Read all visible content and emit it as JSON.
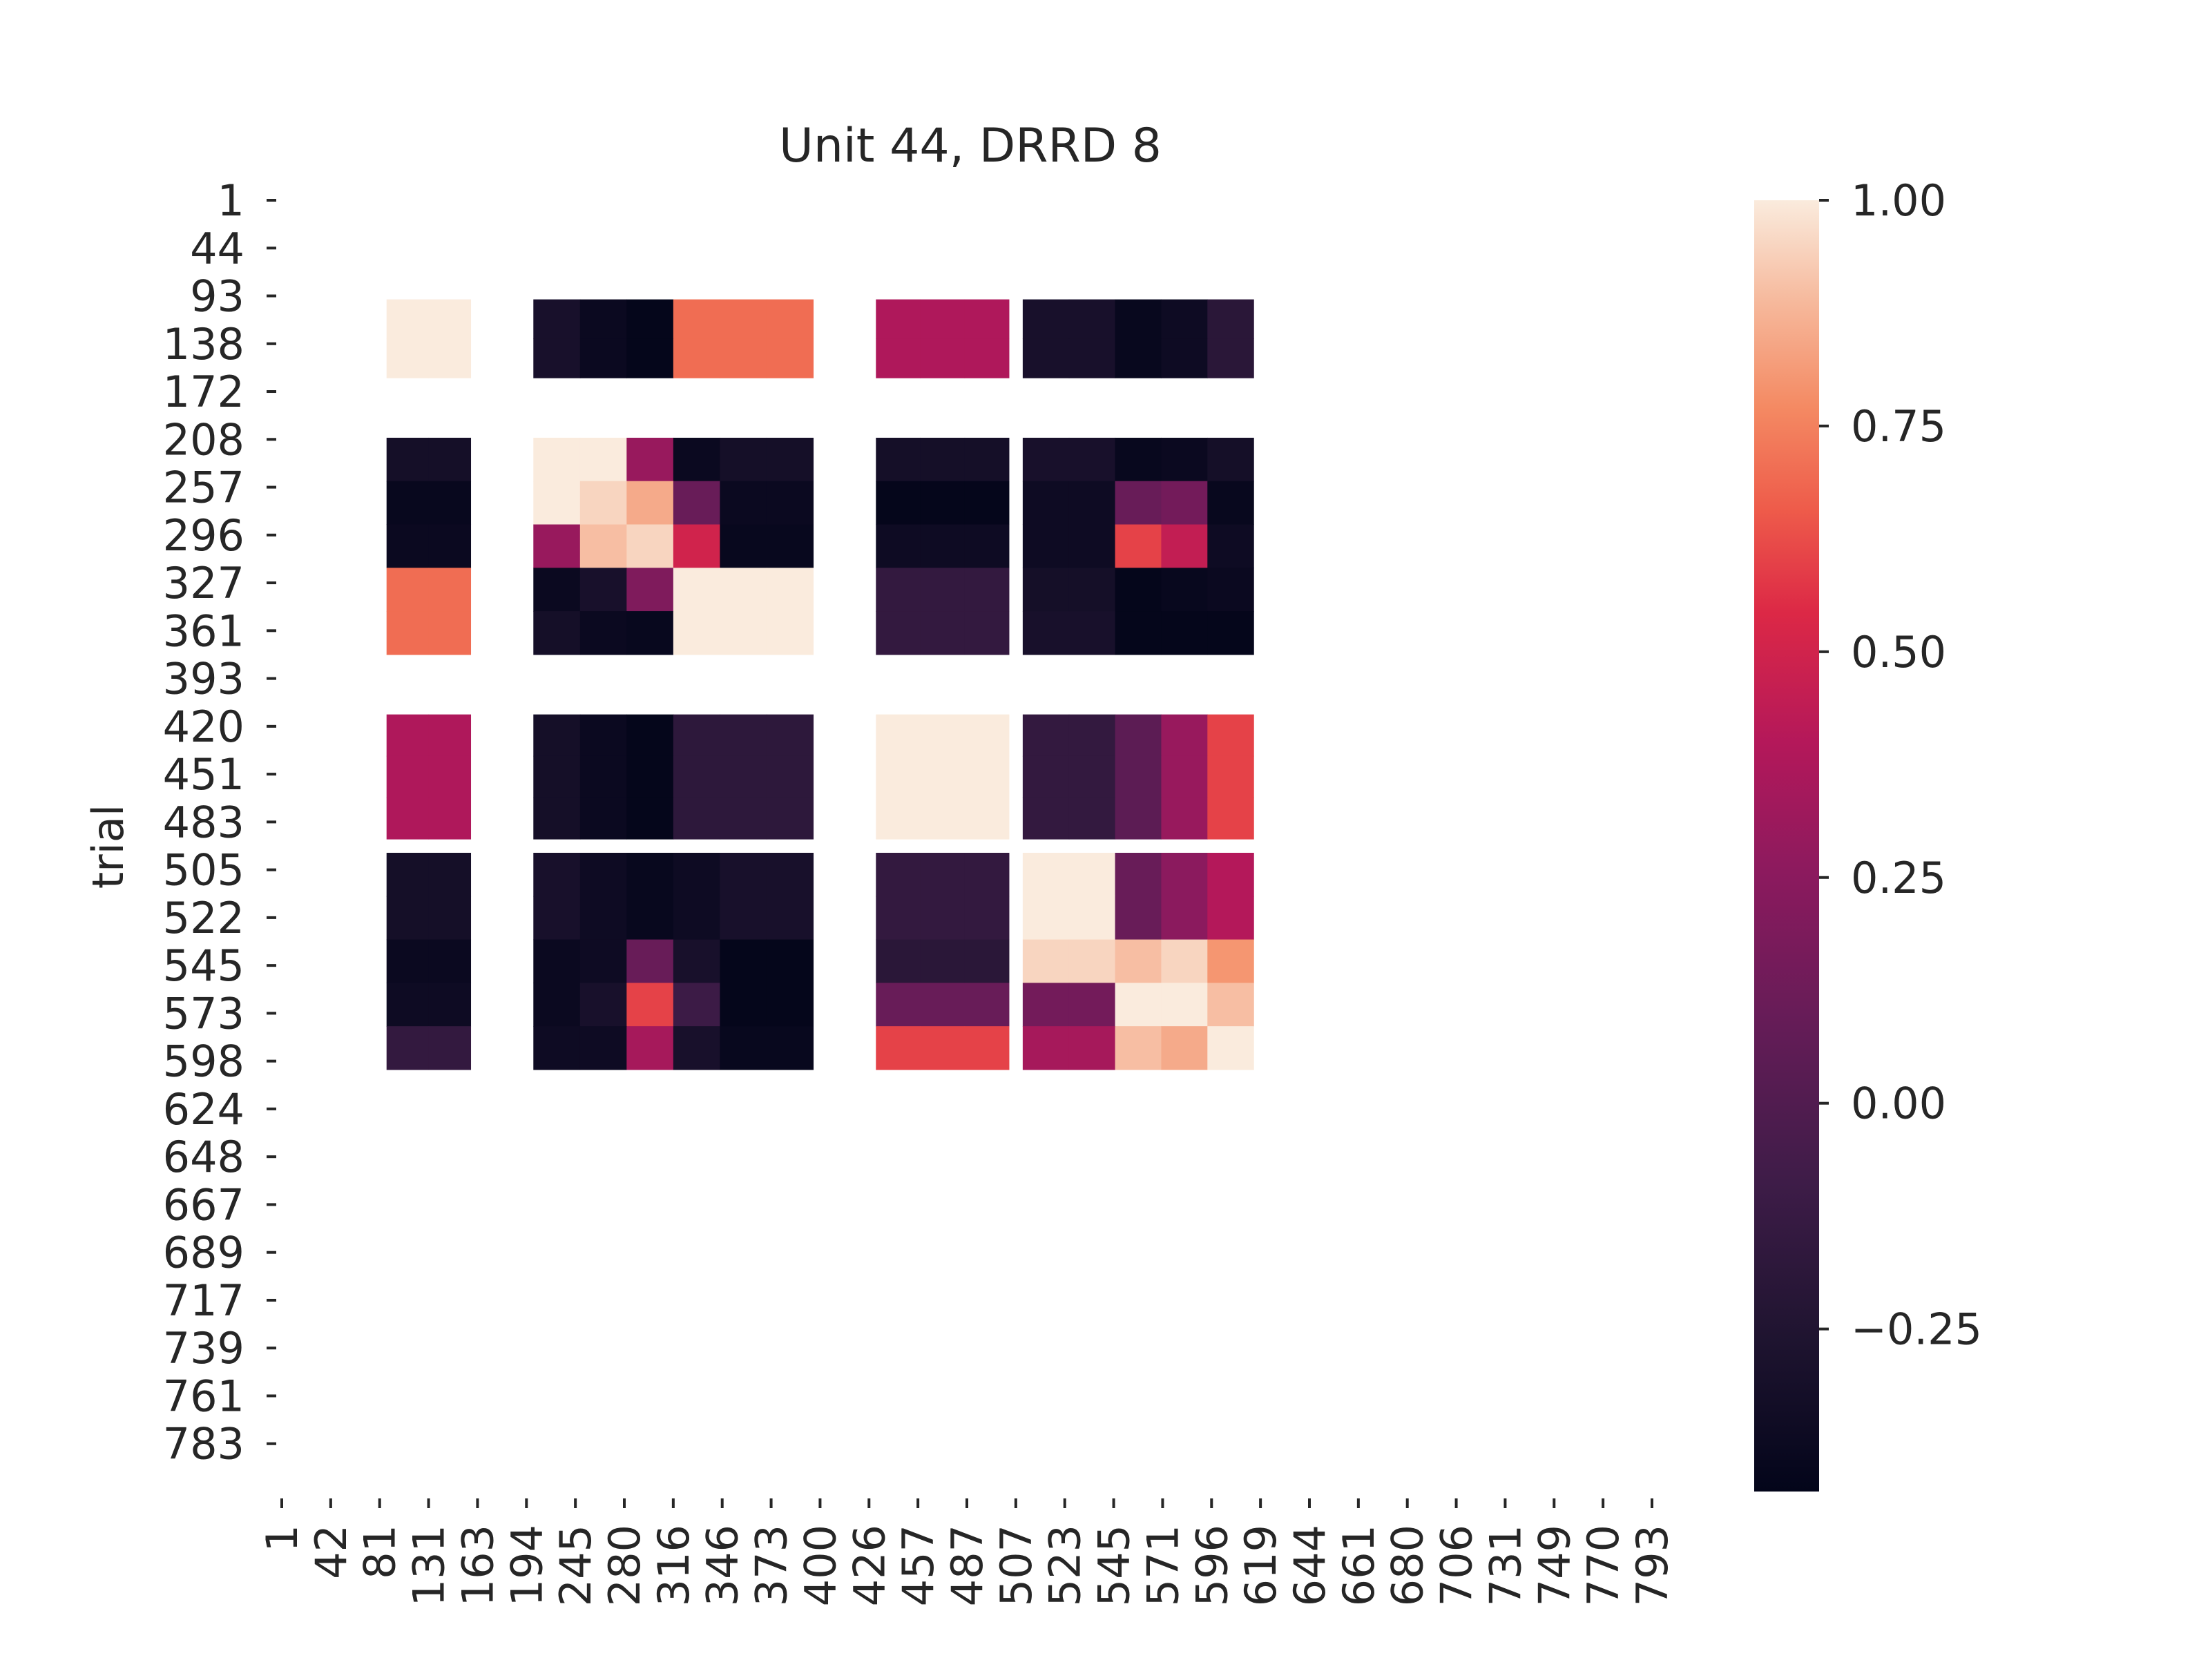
{
  "chart_data": {
    "type": "heatmap",
    "title": "Unit 44, DRRD 8",
    "xlabel": "",
    "ylabel": "trial",
    "colorbar": {
      "ticks": [
        1.0,
        0.75,
        0.5,
        0.25,
        0.0,
        -0.25
      ],
      "tick_labels": [
        "1.00",
        "0.75",
        "0.50",
        "0.25",
        "0.00",
        "−0.25"
      ],
      "vmin": -0.43,
      "vmax": 1.0,
      "colormap": "rocket"
    },
    "x_tick_labels": [
      "1",
      "42",
      "81",
      "131",
      "163",
      "194",
      "245",
      "280",
      "316",
      "346",
      "373",
      "400",
      "426",
      "457",
      "487",
      "507",
      "523",
      "545",
      "571",
      "596",
      "619",
      "644",
      "661",
      "680",
      "706",
      "731",
      "749",
      "770",
      "793"
    ],
    "y_tick_labels": [
      "1",
      "44",
      "93",
      "138",
      "172",
      "208",
      "257",
      "296",
      "327",
      "361",
      "393",
      "420",
      "451",
      "483",
      "505",
      "522",
      "545",
      "573",
      "598",
      "624",
      "648",
      "667",
      "689",
      "717",
      "739",
      "761",
      "783"
    ],
    "grid_rows": 28,
    "grid_cols": 28,
    "blocks": [
      {
        "name": "block-a-a",
        "row_range": [
          2,
          4
        ],
        "col_range": [
          2,
          4
        ],
        "values": [
          [
            1.0,
            1.0
          ],
          [
            1.0,
            1.0
          ]
        ]
      },
      {
        "name": "block-a-b",
        "row_range": [
          2,
          4
        ],
        "col_range": [
          5,
          11
        ],
        "values": [
          [
            -0.3,
            -0.38,
            -0.42,
            0.7,
            0.7,
            0.7
          ],
          [
            -0.3,
            -0.38,
            -0.42,
            0.7,
            0.7,
            0.7
          ]
        ]
      },
      {
        "name": "block-a-c",
        "row_range": [
          2,
          4
        ],
        "col_range": [
          12,
          15
        ],
        "values": [
          [
            0.38,
            0.38,
            0.38
          ],
          [
            0.38,
            0.38,
            0.38
          ]
        ]
      },
      {
        "name": "block-a-d",
        "row_range": [
          2,
          4
        ],
        "col_range": [
          15,
          20
        ],
        "values": [
          [
            -0.3,
            -0.3,
            -0.4,
            -0.36,
            -0.2
          ],
          [
            -0.3,
            -0.3,
            -0.4,
            -0.36,
            -0.2
          ]
        ]
      },
      {
        "name": "block-b-a",
        "row_range": [
          5,
          10
        ],
        "col_range": [
          2,
          4
        ],
        "values": [
          [
            -0.32,
            -0.32
          ],
          [
            -0.4,
            -0.4
          ],
          [
            -0.38,
            -0.38
          ],
          [
            0.7,
            0.7
          ],
          [
            0.7,
            0.7
          ]
        ]
      },
      {
        "name": "block-b-b",
        "row_range": [
          5,
          10
        ],
        "col_range": [
          5,
          11
        ],
        "values": [
          [
            1.0,
            1.0,
            0.3,
            -0.38,
            -0.32,
            -0.32
          ],
          [
            1.0,
            0.95,
            0.85,
            0.1,
            -0.38,
            -0.38
          ],
          [
            0.3,
            0.9,
            0.95,
            0.5,
            -0.4,
            -0.4
          ],
          [
            -0.38,
            -0.3,
            0.2,
            1.0,
            1.0,
            1.0
          ],
          [
            -0.32,
            -0.38,
            -0.4,
            1.0,
            1.0,
            1.0
          ]
        ]
      },
      {
        "name": "block-b-c",
        "row_range": [
          5,
          10
        ],
        "col_range": [
          12,
          15
        ],
        "values": [
          [
            -0.32,
            -0.32,
            -0.32
          ],
          [
            -0.42,
            -0.42,
            -0.42
          ],
          [
            -0.36,
            -0.36,
            -0.36
          ],
          [
            -0.15,
            -0.15,
            -0.15
          ],
          [
            -0.15,
            -0.15,
            -0.15
          ]
        ]
      },
      {
        "name": "block-b-d",
        "row_range": [
          5,
          10
        ],
        "col_range": [
          15,
          20
        ],
        "values": [
          [
            -0.3,
            -0.3,
            -0.4,
            -0.38,
            -0.32
          ],
          [
            -0.36,
            -0.36,
            0.1,
            0.15,
            -0.4
          ],
          [
            -0.36,
            -0.36,
            0.6,
            0.45,
            -0.36
          ],
          [
            -0.32,
            -0.32,
            -0.42,
            -0.4,
            -0.38
          ],
          [
            -0.3,
            -0.3,
            -0.42,
            -0.42,
            -0.42
          ]
        ]
      },
      {
        "name": "block-c-a",
        "row_range": [
          11,
          14
        ],
        "col_range": [
          2,
          4
        ],
        "values": [
          [
            0.38,
            0.38
          ],
          [
            0.38,
            0.38
          ],
          [
            0.38,
            0.38
          ]
        ]
      },
      {
        "name": "block-c-b",
        "row_range": [
          11,
          14
        ],
        "col_range": [
          5,
          11
        ],
        "values": [
          [
            -0.32,
            -0.38,
            -0.42,
            -0.18,
            -0.18,
            -0.18
          ],
          [
            -0.32,
            -0.38,
            -0.42,
            -0.18,
            -0.18,
            -0.18
          ],
          [
            -0.32,
            -0.38,
            -0.42,
            -0.18,
            -0.18,
            -0.18
          ]
        ]
      },
      {
        "name": "block-c-c",
        "row_range": [
          11,
          14
        ],
        "col_range": [
          12,
          15
        ],
        "values": [
          [
            1.0,
            1.0,
            1.0
          ],
          [
            1.0,
            1.0,
            1.0
          ],
          [
            1.0,
            1.0,
            1.0
          ]
        ]
      },
      {
        "name": "block-c-d",
        "row_range": [
          11,
          14
        ],
        "col_range": [
          15,
          20
        ],
        "values": [
          [
            -0.15,
            -0.15,
            0.05,
            0.3,
            0.6
          ],
          [
            -0.15,
            -0.15,
            0.05,
            0.3,
            0.6
          ],
          [
            -0.15,
            -0.15,
            0.05,
            0.3,
            0.6
          ]
        ]
      },
      {
        "name": "block-d-a",
        "row_range": [
          14,
          19
        ],
        "col_range": [
          2,
          4
        ],
        "values": [
          [
            -0.32,
            -0.32
          ],
          [
            -0.32,
            -0.32
          ],
          [
            -0.38,
            -0.38
          ],
          [
            -0.36,
            -0.36
          ],
          [
            -0.15,
            -0.15
          ]
        ]
      },
      {
        "name": "block-d-b",
        "row_range": [
          14,
          19
        ],
        "col_range": [
          5,
          11
        ],
        "values": [
          [
            -0.3,
            -0.36,
            -0.4,
            -0.36,
            -0.3,
            -0.3
          ],
          [
            -0.3,
            -0.36,
            -0.4,
            -0.36,
            -0.3,
            -0.3
          ],
          [
            -0.38,
            -0.36,
            0.1,
            -0.3,
            -0.42,
            -0.42
          ],
          [
            -0.38,
            -0.3,
            0.6,
            -0.1,
            -0.42,
            -0.42
          ],
          [
            -0.36,
            -0.36,
            0.35,
            -0.3,
            -0.4,
            -0.4
          ]
        ]
      },
      {
        "name": "block-d-c",
        "row_range": [
          14,
          19
        ],
        "col_range": [
          12,
          15
        ],
        "values": [
          [
            -0.15,
            -0.15,
            -0.15
          ],
          [
            -0.15,
            -0.15,
            -0.15
          ],
          [
            -0.2,
            -0.2,
            -0.2
          ],
          [
            0.1,
            0.1,
            0.1
          ],
          [
            0.6,
            0.6,
            0.6
          ]
        ]
      },
      {
        "name": "block-d-d",
        "row_range": [
          14,
          19
        ],
        "col_range": [
          15,
          20
        ],
        "values": [
          [
            1.0,
            1.0,
            0.1,
            0.25,
            0.4
          ],
          [
            1.0,
            1.0,
            0.1,
            0.25,
            0.4
          ],
          [
            0.95,
            0.95,
            0.9,
            0.95,
            0.8
          ],
          [
            0.15,
            0.15,
            1.0,
            1.0,
            0.9
          ],
          [
            0.35,
            0.35,
            0.9,
            0.85,
            1.0
          ]
        ]
      }
    ]
  }
}
